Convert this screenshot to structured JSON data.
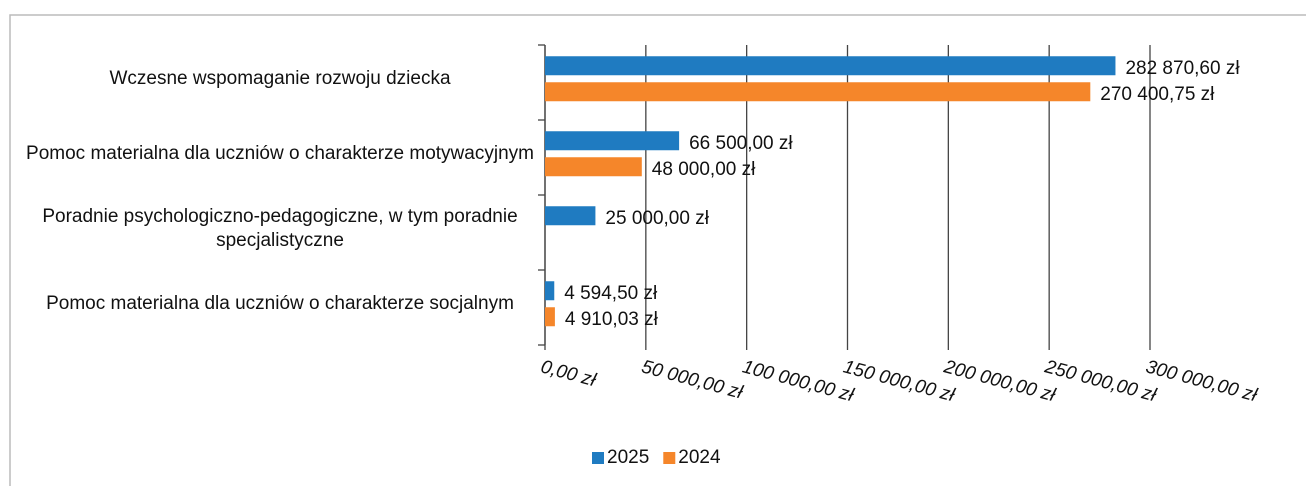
{
  "chart_data": {
    "type": "bar",
    "orientation": "horizontal",
    "categories": [
      "Wczesne wspomaganie rozwoju dziecka",
      "Pomoc materialna dla uczniów o charakterze motywacyjnym",
      "Poradnie psychologiczno-pedagogiczne, w tym poradnie specjalistyczne",
      "Pomoc materialna dla uczniów o charakterze socjalnym"
    ],
    "series": [
      {
        "name": "2025",
        "color": "#1f7bc1",
        "values": [
          282870.6,
          66500,
          25000,
          4594.5
        ],
        "value_labels": [
          "282 870,60 zł",
          "66 500,00 zł",
          "25 000,00 zł",
          "4 594,50 zł"
        ]
      },
      {
        "name": "2024",
        "color": "#f5862a",
        "values": [
          270400.75,
          48000,
          null,
          4910.03
        ],
        "value_labels": [
          "270 400,75 zł",
          "48 000,00 zł",
          null,
          "4 910,03 zł"
        ]
      }
    ],
    "xlim": [
      0,
      300000
    ],
    "xticks": [
      {
        "value": 0,
        "label": "0,00 zł"
      },
      {
        "value": 50000,
        "label": "50 000,00 zł"
      },
      {
        "value": 100000,
        "label": "100 000,00 zł"
      },
      {
        "value": 150000,
        "label": "150 000,00 zł"
      },
      {
        "value": 200000,
        "label": "200 000,00 zł"
      },
      {
        "value": 250000,
        "label": "250 000,00 zł"
      },
      {
        "value": 300000,
        "label": "300 000,00 zł"
      }
    ],
    "grid": true,
    "legend": "bottom"
  }
}
